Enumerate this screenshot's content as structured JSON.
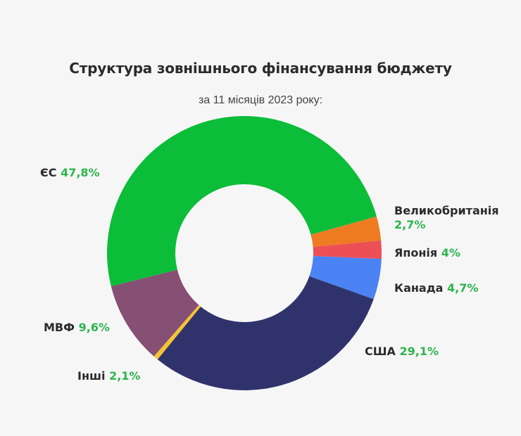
{
  "header": {
    "title": "Структура зовнішнього фінансування бюджету",
    "subtitle": "за 11 місяців 2023 року:"
  },
  "colors": {
    "background": "#f6f6f6",
    "label_text": "#2b2b2b",
    "percent_text": "#2bb54d"
  },
  "labels": {
    "eu": {
      "name": "ЄС",
      "pct": "47,8%"
    },
    "uk": {
      "name": "Великобританія",
      "pct": "2,7%"
    },
    "japan": {
      "name": "Японія",
      "pct": "4%"
    },
    "canada": {
      "name": "Канада",
      "pct": "4,7%"
    },
    "usa": {
      "name": "США",
      "pct": "29,1%"
    },
    "imf": {
      "name": "МВФ",
      "pct": "9,6%"
    },
    "other": {
      "name": "Інші",
      "pct": "2,1%"
    }
  },
  "chart_data": {
    "type": "pie",
    "variant": "donut",
    "title": "Структура зовнішнього фінансування бюджету",
    "subtitle": "за 11 місяців 2023 року:",
    "unit": "%",
    "categories": [
      "ЄС",
      "Великобританія",
      "Японія",
      "Канада",
      "США",
      "Інші",
      "МВФ"
    ],
    "values": [
      47.8,
      2.7,
      4.0,
      4.7,
      29.1,
      2.1,
      9.6
    ],
    "colors": [
      "#0cbd3a",
      "#ee7b22",
      "#ec5056",
      "#4b82f4",
      "#30336b",
      "#f4c531",
      "#864f74"
    ],
    "segments_visual_deg": [
      {
        "name": "ЄС",
        "start": 166,
        "end": 344.5,
        "color": "#0cbd3a"
      },
      {
        "name": "Великобританія",
        "start": 344.5,
        "end": 354.7,
        "color": "#ee7b22"
      },
      {
        "name": "Японія",
        "start": 354.7,
        "end": 362.4,
        "color": "#ec5056"
      },
      {
        "name": "Канада",
        "start": 362.4,
        "end": 379.6,
        "color": "#4b82f4"
      },
      {
        "name": "США",
        "start": 379.6,
        "end": 489.2,
        "color": "#30336b"
      },
      {
        "name": "Інші",
        "start": 489.2,
        "end": 491.2,
        "color": "#f4c531"
      },
      {
        "name": "МВФ",
        "start": 491.2,
        "end": 526,
        "color": "#864f74"
      }
    ],
    "center": [
      347,
      360
    ],
    "outer_radius": 195,
    "inner_radius": 98,
    "legend_position": "inline labels"
  }
}
